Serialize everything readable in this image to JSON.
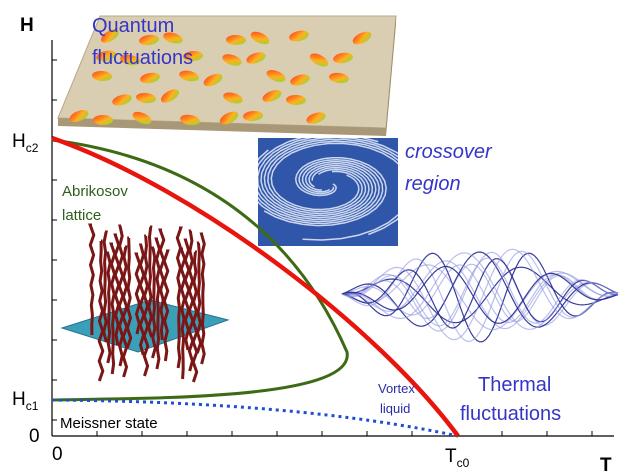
{
  "axes": {
    "y_label": "H",
    "x_label": "T",
    "y_ticks": [
      {
        "main": "H",
        "sub": "c2"
      },
      {
        "main": "H",
        "sub": "c1"
      },
      {
        "main": "0"
      }
    ],
    "x_ticks": [
      {
        "main": "0"
      },
      {
        "main": "T",
        "sub": "c0"
      }
    ]
  },
  "regions": {
    "quantum": [
      "Quantum",
      "fluctuations"
    ],
    "crossover": [
      "crossover",
      "region"
    ],
    "abrikosov": [
      "Abrikosov",
      "lattice"
    ],
    "vortex_liquid": [
      "Vortex",
      "liquid"
    ],
    "thermal": [
      "Thermal",
      "fluctuations"
    ],
    "meissner": [
      "Meissner state"
    ]
  }
}
